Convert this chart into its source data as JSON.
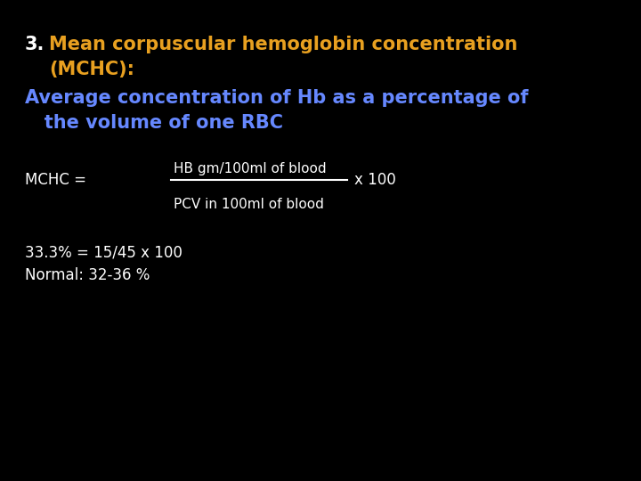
{
  "background_color": "#000000",
  "number_color": "#ffffff",
  "title_color": "#e8a020",
  "subtitle_color": "#6688ff",
  "formula_color": "#ffffff",
  "line_color": "#ffffff",
  "result_color": "#ffffff",
  "fontsize_title": 15,
  "fontsize_subtitle": 15,
  "fontsize_formula": 11,
  "fontsize_result": 12,
  "title_number": "3.",
  "title_rest": "Mean corpuscular hemoglobin concentration",
  "title_line2": "(MCHC):",
  "subtitle_line1": "Average concentration of Hb as a percentage of",
  "subtitle_line2": "   the volume of one RBC",
  "formula_numerator": "HB gm/100ml of blood",
  "formula_label": "MCHC = ",
  "formula_denominator": "PCV in 100ml of blood",
  "formula_x100": "x 100",
  "result_line1": "33.3% = 15/45 x 100",
  "result_line2": "Normal: 32-36 %"
}
